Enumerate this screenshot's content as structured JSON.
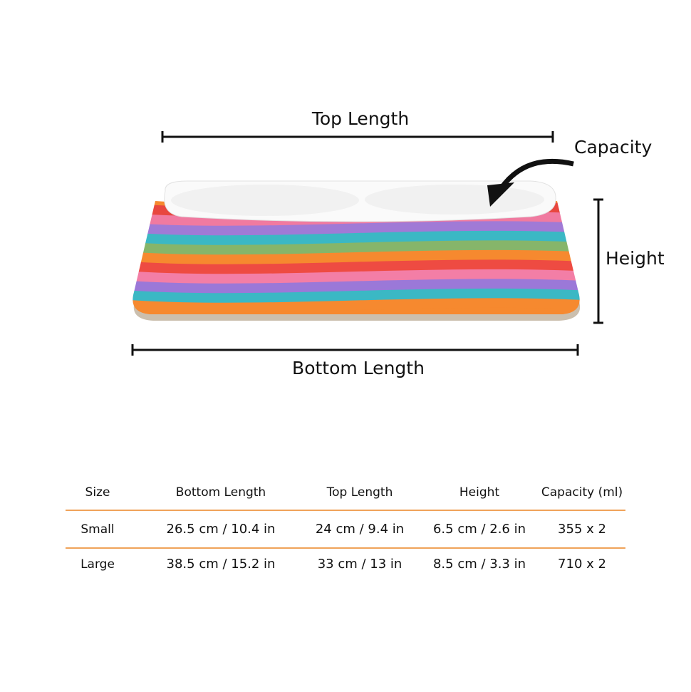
{
  "diagram": {
    "labels": {
      "top_length": "Top Length",
      "capacity": "Capacity",
      "height": "Height",
      "bottom_length": "Bottom Length"
    }
  },
  "table": {
    "header": [
      "Size",
      "Bottom Length",
      "Top Length",
      "Height",
      "Capacity (ml)"
    ],
    "rows": [
      [
        "Small",
        "26.5 cm / 10.4 in",
        "24 cm / 9.4 in",
        "6.5 cm / 2.6 in",
        "355 x 2"
      ],
      [
        "Large",
        "38.5 cm / 15.2 in",
        "33 cm / 13 in",
        "8.5 cm / 3.3 in",
        "710 x 2"
      ]
    ]
  }
}
